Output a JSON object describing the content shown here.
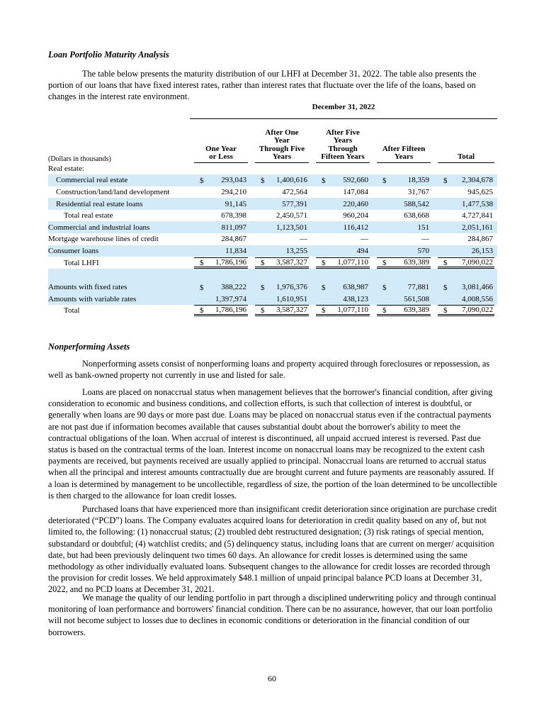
{
  "heading": "Loan Portfolio Maturity Analysis",
  "intro": "The table below presents the maturity distribution of our LHFI at December 31, 2022. The table also presents the portion of our loans that have fixed interest rates, rather than interest rates that fluctuate over the life of the loans, based on changes in the interest rate environment.",
  "table": {
    "period": "December 31, 2022",
    "unit_note": "(Dollars in thousands)",
    "columns": [
      "One Year\nor Less",
      "After One\nYear\nThrough Five\nYears",
      "After Five\nYears\nThrough\nFifteen Years",
      "After Fifteen\nYears",
      "Total"
    ],
    "currency_symbol": "$",
    "shade_color": "#d3eaf8",
    "sections": [
      {
        "rows": [
          {
            "label": "Real estate:",
            "indent": 0
          },
          {
            "label": "Commercial real estate",
            "indent": 1,
            "shaded": true,
            "dollar": true,
            "cells": [
              "293,043",
              "1,400,616",
              "592,660",
              "18,359",
              "2,304,678"
            ]
          },
          {
            "label": "Construction/land/land development",
            "indent": 1,
            "cells": [
              "294,210",
              "472,564",
              "147,084",
              "31,767",
              "945,625"
            ]
          },
          {
            "label": "Residential real estate loans",
            "indent": 1,
            "shaded": true,
            "cells": [
              "91,145",
              "577,391",
              "220,460",
              "588,542",
              "1,477,538"
            ]
          },
          {
            "label": "Total real estate",
            "indent": 2,
            "cells": [
              "678,398",
              "2,450,571",
              "960,204",
              "638,668",
              "4,727,841"
            ]
          },
          {
            "label": "Commercial and industrial loans",
            "indent": 0,
            "shaded": true,
            "cells": [
              "811,097",
              "1,123,501",
              "116,412",
              "151",
              "2,051,161"
            ]
          },
          {
            "label": "Mortgage warehouse lines of credit",
            "indent": 0,
            "cells": [
              "284,867",
              "—",
              "—",
              "—",
              "284,867"
            ]
          },
          {
            "label": "Consumer loans",
            "indent": 0,
            "shaded": true,
            "cells": [
              "11,834",
              "13,255",
              "494",
              "570",
              "26,153"
            ]
          },
          {
            "label": "Total LHFI",
            "indent": 2,
            "dollar": true,
            "total": true,
            "cells": [
              "1,786,196",
              "3,587,327",
              "1,077,110",
              "639,389",
              "7,090,022"
            ]
          }
        ]
      },
      {
        "rows": [
          {
            "label": "Amounts with fixed rates",
            "indent": 0,
            "shaded": true,
            "dollar": true,
            "cells": [
              "388,222",
              "1,976,376",
              "638,987",
              "77,881",
              "3,081,466"
            ]
          },
          {
            "label": "Amounts with variable rates",
            "indent": 0,
            "shaded": true,
            "cells": [
              "1,397,974",
              "1,610,951",
              "438,123",
              "561,508",
              "4,008,556"
            ]
          },
          {
            "label": "Total",
            "indent": 2,
            "dollar": true,
            "total": true,
            "cells": [
              "1,786,196",
              "3,587,327",
              "1,077,110",
              "639,389",
              "7,090,022"
            ]
          }
        ]
      }
    ]
  },
  "section2": {
    "heading": "Nonperforming Assets",
    "paragraphs": [
      "Nonperforming assets consist of nonperforming loans and property acquired through foreclosures or repossession, as well as bank-owned property not currently in use and listed for sale.",
      "Loans are placed on nonaccrual status when management believes that the borrower's financial condition, after giving consideration to economic and business conditions, and collection efforts, is such that collection of interest is doubtful, or generally when loans are 90 days or more past due. Loans may be placed on nonaccrual status even if the contractual payments are not past due if information becomes available that causes substantial doubt about the borrower's ability to meet the contractual obligations of the loan. When accrual of interest is discontinued, all unpaid accrued interest is reversed. Past due status is based on the contractual terms of the loan. Interest income on nonaccrual loans may be recognized to the extent cash payments are received, but payments received are usually applied to principal. Nonaccrual loans are returned to accrual status when all the principal and interest amounts contractually due are brought current and future payments are reasonably assured. If a loan is determined by management to be uncollectible, regardless of size, the portion of the loan determined to be uncollectible is then charged to the allowance for loan credit losses.",
      "Purchased loans that have experienced more than insignificant credit deterioration since origination are purchase credit deteriorated (“PCD”) loans. The Company evaluates acquired loans for deterioration in credit quality based on any of, but not limited to, the following: (1) nonaccrual status; (2) troubled debt restructured designation; (3) risk ratings of special mention, substandard or doubtful; (4) watchlist credits; and (5) delinquency status, including loans that are current on merger/ acquisition date, but had been previously delinquent two times 60 days. An allowance for credit losses is determined using the same methodology as other individually evaluated loans. Subsequent changes to the allowance for credit losses are recorded through the provision for credit losses. We held approximately $48.1 million of unpaid principal balance PCD loans at December 31, 2022, and no PCD loans at December 31, 2021.",
      "We manage the quality of our lending portfolio in part through a disciplined underwriting policy and through continual monitoring of loan performance and borrowers' financial condition. There can be no assurance, however, that our loan portfolio will not become subject to losses due to declines in economic conditions or deterioration in the financial condition of our borrowers."
    ]
  },
  "page_number": "60"
}
